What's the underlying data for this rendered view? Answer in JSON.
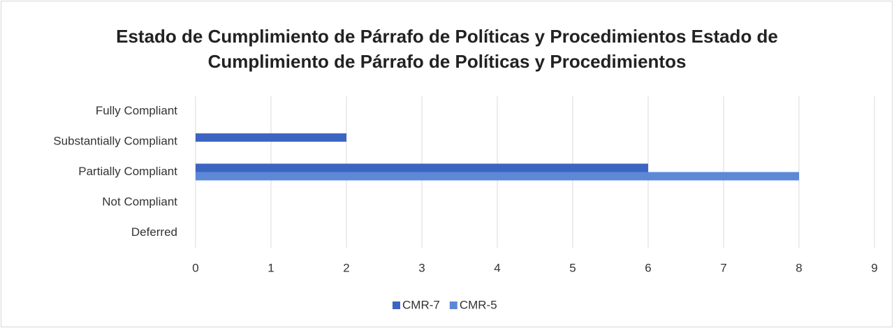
{
  "chart_data": {
    "type": "hbar",
    "title": "Estado de Cumplimiento de Párrafo de Políticas y Procedimientos Estado de Cumplimiento de Párrafo de Políticas y Procedimientos",
    "categories": [
      "Fully Compliant",
      "Substantially Compliant",
      "Partially Compliant",
      "Not Compliant",
      "Deferred"
    ],
    "series": [
      {
        "name": "CMR-7",
        "color": "#3c65c2",
        "values": [
          0,
          2,
          6,
          0,
          0
        ]
      },
      {
        "name": "CMR-5",
        "color": "#5d88d8",
        "values": [
          0,
          0,
          8,
          0,
          0
        ]
      }
    ],
    "xlim": [
      0,
      9
    ],
    "xticks": [
      0,
      1,
      2,
      3,
      4,
      5,
      6,
      7,
      8,
      9
    ],
    "grid": true,
    "legend": "bottom"
  }
}
